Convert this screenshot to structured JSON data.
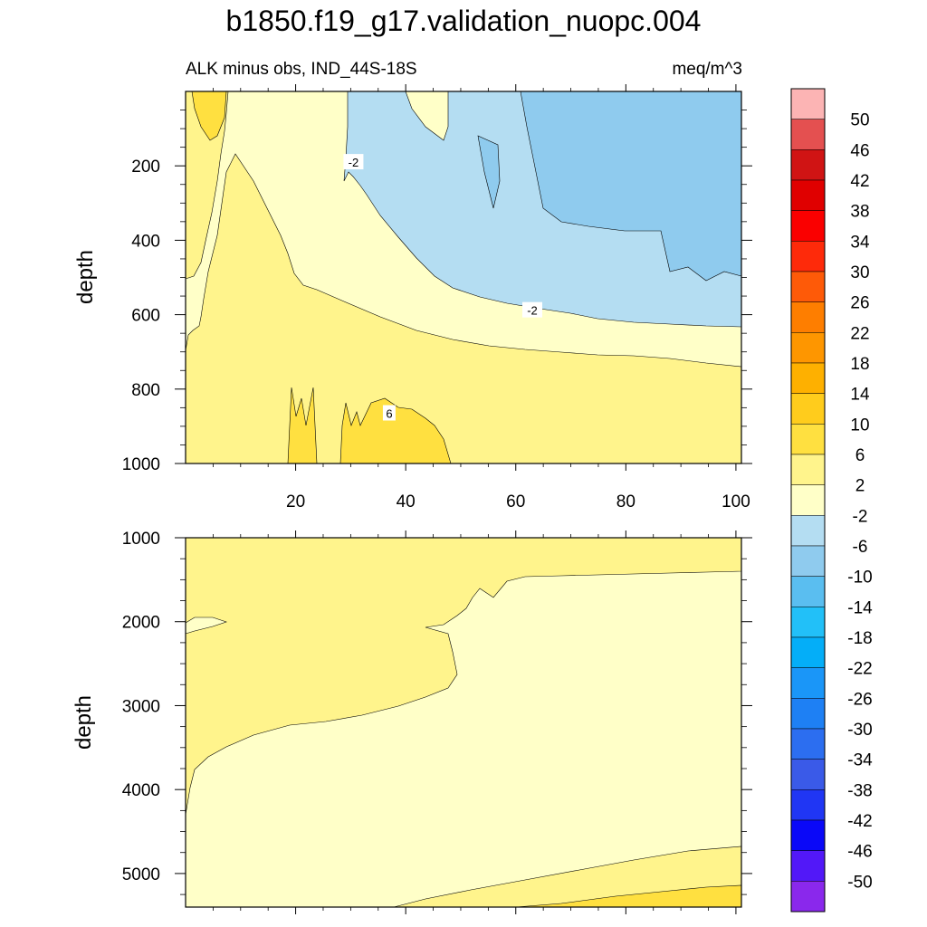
{
  "chart_data": {
    "type": "contour",
    "title": "b1850.f19_g17.validation_nuopc.004",
    "subtitle_left": "ALK minus obs, IND_44S-18S",
    "units": "meq/m^3",
    "panels": [
      {
        "name": "upper",
        "ylabel": "depth",
        "xlim": [
          0,
          101
        ],
        "ylim": [
          1000,
          0
        ],
        "xticks": [
          20,
          40,
          60,
          80,
          100
        ],
        "xtick_labels": [
          "20",
          "40",
          "60",
          "80",
          "100"
        ],
        "yticks": [
          200,
          400,
          600,
          800,
          1000
        ],
        "ytick_labels": [
          "200",
          "400",
          "600",
          "800",
          "1000"
        ],
        "contour_labels": [
          {
            "text": "-2",
            "x": 30.5,
            "y": 190
          },
          {
            "text": "-2",
            "x": 63,
            "y": 588
          },
          {
            "text": "6",
            "x": 37,
            "y": 865
          }
        ]
      },
      {
        "name": "lower",
        "ylabel": "depth",
        "xlim": [
          0,
          101
        ],
        "ylim": [
          5400,
          1000
        ],
        "yticks": [
          1000,
          2000,
          3000,
          4000,
          5000
        ],
        "ytick_labels": [
          "1000",
          "2000",
          "3000",
          "4000",
          "5000"
        ]
      }
    ],
    "colorbar": {
      "labels": [
        "50",
        "46",
        "42",
        "38",
        "34",
        "30",
        "26",
        "22",
        "18",
        "14",
        "10",
        "6",
        "2",
        "-2",
        "-6",
        "-10",
        "-14",
        "-18",
        "-22",
        "-26",
        "-30",
        "-34",
        "-38",
        "-42",
        "-46",
        "-50"
      ],
      "colors": [
        "#fcb4b4",
        "#e45050",
        "#d01414",
        "#e00000",
        "#fa0000",
        "#fe2a0a",
        "#fe5a08",
        "#fe7e00",
        "#fe9600",
        "#feb000",
        "#ffcc1c",
        "#ffe040",
        "#fff48c",
        "#ffffc8",
        "#b4ddf2",
        "#8fcbee",
        "#5abef0",
        "#22c0f8",
        "#04aef8",
        "#1a96f8",
        "#1e80f4",
        "#2c6ef0",
        "#3a5ae8",
        "#2036f4",
        "#0a08f8",
        "#5218f8",
        "#8a28ec"
      ]
    }
  }
}
